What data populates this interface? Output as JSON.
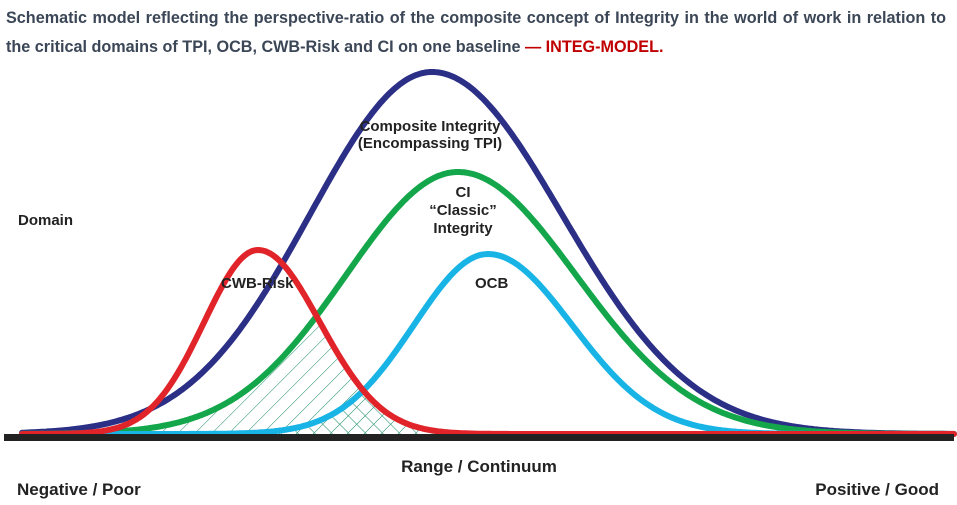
{
  "caption": {
    "text": "Schematic model reflecting the perspective-ratio of the composite concept of Integrity in the world of work in relation to the critical domains of TPI, OCB, CWB-Risk and CI on one baseline",
    "highlight": "— INTEG-MODEL."
  },
  "labels": {
    "domain": "Domain",
    "composite_line1": "Composite Integrity",
    "composite_line2": "(Encompassing TPI)",
    "ci_line1": "CI",
    "ci_line2": "“Classic”",
    "ci_line3": "Integrity",
    "ocb": "OCB",
    "cwb": "CWB-Risk",
    "axis": "Range / Continuum",
    "left_end": "Negative / Poor",
    "right_end": "Positive / Good"
  },
  "colors": {
    "composite": "#2b2f86",
    "ci": "#14a64a",
    "ocb": "#19b4e6",
    "cwb": "#e0242a",
    "baseline": "#222222",
    "hatch": "#1a8a6a",
    "caption_text": "#3b4656",
    "caption_highlight": "#c00000"
  }
}
